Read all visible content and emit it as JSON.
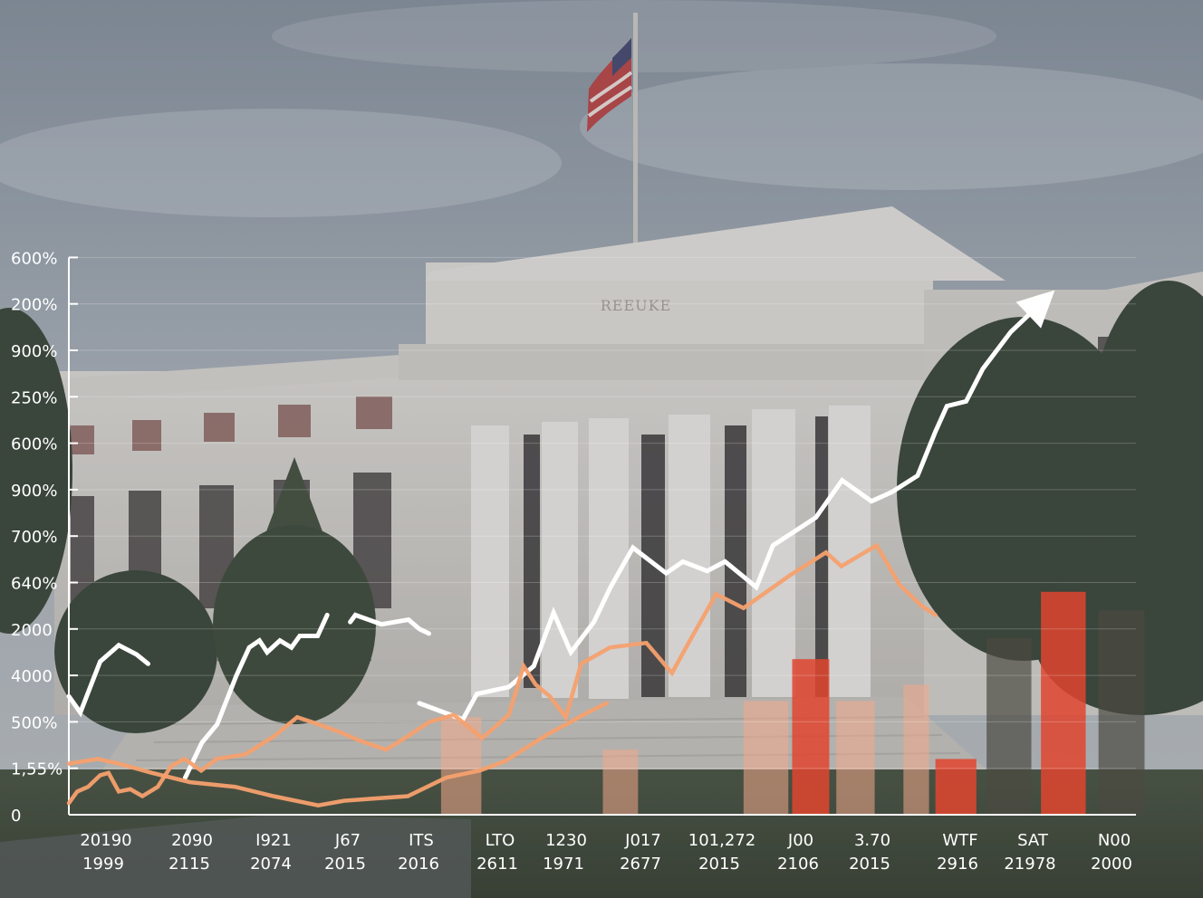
{
  "sign_text": "REEUKE",
  "colors": {
    "white_series": "#ffffff",
    "orange_series": "#f6a06e",
    "red_bars": "#e0452f",
    "dark_bars": "#4b4a42",
    "peach_bars": "#f2a88a"
  },
  "chart_data": {
    "type": "line",
    "title": "",
    "xlabel": "",
    "ylabel": "",
    "y_tick_labels": [
      "600%",
      "200%",
      "900%",
      "250%",
      "600%",
      "900%",
      "700%",
      "640%",
      "2000",
      "4000",
      "500%",
      "1,55%",
      "0"
    ],
    "x_tick_labels": [
      {
        "top": "20190",
        "bottom": "1999"
      },
      {
        "top": "2090",
        "bottom": "2115"
      },
      {
        "top": "I921",
        "bottom": "2074"
      },
      {
        "top": "J67",
        "bottom": "2015"
      },
      {
        "top": "ITS",
        "bottom": "2016"
      },
      {
        "top": "LTO",
        "bottom": "2611"
      },
      {
        "top": "1230",
        "bottom": "1971"
      },
      {
        "top": "J017",
        "bottom": "2677"
      },
      {
        "top": "101,272",
        "bottom": "2015"
      },
      {
        "top": "J00",
        "bottom": "2106"
      },
      {
        "top": "3.70",
        "bottom": "2015"
      },
      {
        "top": "WTF",
        "bottom": "2916"
      },
      {
        "top": "SAT",
        "bottom": "21978"
      },
      {
        "top": "N00",
        "bottom": "2000"
      }
    ],
    "grid": true,
    "y_index_range": [
      0,
      12
    ],
    "x_index_range": [
      0,
      14
    ],
    "series": [
      {
        "style": "white-line-with-arrow",
        "segments": [
          {
            "x": [
              0.0,
              0.18,
              0.49,
              0.78,
              1.06,
              1.24
            ],
            "y": [
              2.55,
              2.2,
              3.3,
              3.65,
              3.45,
              3.25
            ]
          },
          {
            "x": [
              1.82,
              2.08,
              2.32,
              2.62,
              2.82,
              2.98,
              3.1,
              3.3,
              3.48,
              3.61,
              3.89,
              4.04
            ],
            "y": [
              0.8,
              1.55,
              1.95,
              3.0,
              3.6,
              3.75,
              3.5,
              3.75,
              3.6,
              3.85,
              3.85,
              4.3
            ]
          },
          {
            "x": [
              4.4,
              4.48,
              4.89,
              5.31,
              5.48,
              5.63
            ],
            "y": [
              4.15,
              4.3,
              4.1,
              4.2,
              4.0,
              3.9
            ]
          },
          {
            "x": [
              5.48,
              6.16,
              6.38,
              6.88,
              7.27,
              7.58,
              7.85,
              8.21,
              8.47,
              8.82,
              9.34,
              9.6,
              9.98,
              10.26,
              10.75,
              11.01,
              11.68,
              12.09,
              12.55,
              12.87,
              13.27,
              13.55,
              13.73,
              14.03,
              14.29,
              14.73,
              15.19
            ],
            "y": [
              2.4,
              2.05,
              2.6,
              2.75,
              3.2,
              4.35,
              3.5,
              4.15,
              4.9,
              5.75,
              5.2,
              5.45,
              5.25,
              5.45,
              4.9,
              5.8,
              6.4,
              7.2,
              6.75,
              6.95,
              7.3,
              8.25,
              8.8,
              8.9,
              9.6,
              10.4,
              11.0
            ]
          }
        ]
      },
      {
        "style": "orange-line",
        "segments": [
          {
            "x": [
              0.0,
              0.13,
              0.3,
              0.49,
              0.62,
              0.78,
              0.96,
              1.15,
              1.39,
              1.6,
              1.81,
              2.07,
              2.31,
              2.76,
              3.22,
              3.57,
              3.79,
              4.2,
              4.54,
              4.96,
              5.31,
              5.64,
              6.02,
              6.46,
              6.88,
              7.11,
              7.3,
              7.52,
              7.77,
              8.01,
              8.46,
              9.03,
              9.43,
              9.65,
              10.12,
              10.55,
              11.27,
              11.84,
              12.08,
              12.63,
              12.99,
              13.33,
              13.55
            ],
            "y": [
              0.25,
              0.5,
              0.6,
              0.85,
              0.9,
              0.5,
              0.55,
              0.4,
              0.6,
              1.05,
              1.2,
              0.95,
              1.2,
              1.3,
              1.7,
              2.1,
              2.0,
              1.8,
              1.6,
              1.4,
              1.7,
              2.0,
              2.15,
              1.65,
              2.15,
              3.2,
              2.8,
              2.55,
              2.1,
              3.25,
              3.6,
              3.7,
              3.05,
              3.6,
              4.75,
              4.45,
              5.15,
              5.65,
              5.35,
              5.8,
              4.95,
              4.5,
              4.3
            ]
          },
          {
            "x": [
              0.0,
              0.45,
              0.78,
              1.3,
              1.9,
              2.6,
              3.2,
              3.9,
              4.3,
              4.8,
              5.3,
              5.9,
              6.42,
              6.82,
              7.16,
              7.51,
              7.78,
              8.11,
              8.41
            ],
            "y": [
              1.1,
              1.2,
              1.1,
              0.9,
              0.7,
              0.6,
              0.4,
              0.2,
              0.3,
              0.35,
              0.4,
              0.8,
              0.95,
              1.15,
              1.45,
              1.75,
              1.95,
              2.2,
              2.4
            ]
          }
        ]
      }
    ],
    "bars": [
      {
        "x0": 13.55,
        "x1": 14.19,
        "top": 1.2,
        "style": "red"
      },
      {
        "x0": 15.2,
        "x1": 15.9,
        "top": 4.8,
        "style": "red"
      },
      {
        "x0": 11.31,
        "x1": 11.89,
        "top": 3.35,
        "style": "red"
      },
      {
        "x0": 14.35,
        "x1": 15.05,
        "top": 3.8,
        "style": "dark"
      },
      {
        "x0": 16.1,
        "x1": 16.82,
        "top": 4.4,
        "style": "dark"
      },
      {
        "x0": 5.82,
        "x1": 6.45,
        "top": 2.1,
        "style": "peach"
      },
      {
        "x0": 8.35,
        "x1": 8.9,
        "top": 1.4,
        "style": "peach"
      },
      {
        "x0": 10.55,
        "x1": 11.25,
        "top": 2.45,
        "style": "peach"
      },
      {
        "x0": 12.0,
        "x1": 12.6,
        "top": 2.45,
        "style": "peach"
      },
      {
        "x0": 13.05,
        "x1": 13.45,
        "top": 2.8,
        "style": "peach"
      }
    ]
  }
}
